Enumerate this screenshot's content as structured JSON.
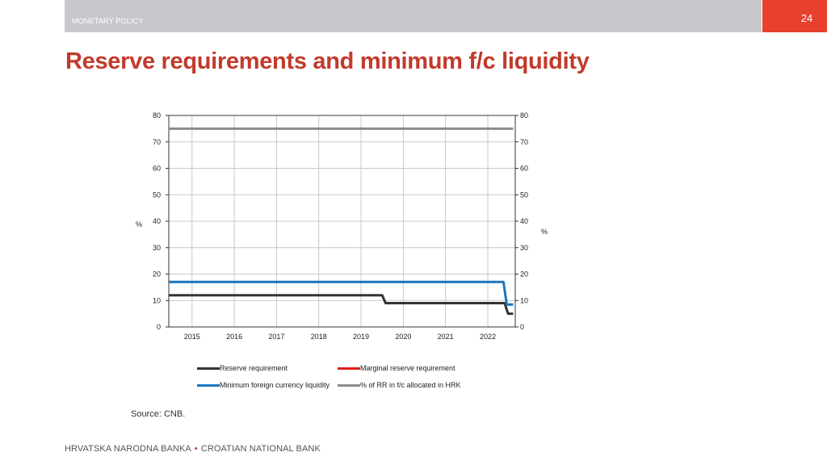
{
  "header": {
    "section": "MONETARY POLICY",
    "page_number": "24",
    "title": "Reserve requirements and minimum f/c liquidity",
    "bar_color": "#c8c8cc",
    "accent_color": "#e8402e",
    "title_color": "#c23a2b"
  },
  "chart_data": {
    "type": "line",
    "y_left_label": "%",
    "y_right_label": "%",
    "ylim": [
      0,
      80
    ],
    "y_ticks": [
      0,
      10,
      20,
      30,
      40,
      50,
      60,
      70,
      80
    ],
    "xlim": [
      2014.45,
      2022.65
    ],
    "x_ticks": [
      "2015",
      "2016",
      "2017",
      "2018",
      "2019",
      "2020",
      "2021",
      "2022"
    ],
    "grid": true,
    "legend_position": "bottom",
    "series": [
      {
        "name": "Reserve requirement",
        "color": "#333333",
        "x": [
          2014.45,
          2019.5,
          2019.58,
          2022.4,
          2022.48,
          2022.6
        ],
        "y": [
          12,
          12,
          9,
          9,
          5,
          5
        ]
      },
      {
        "name": "Marginal reserve requirement",
        "color": "#e31e1e",
        "x": [],
        "y": []
      },
      {
        "name": "Minimum foreign currency liquidity",
        "color": "#1c75bc",
        "x": [
          2014.45,
          2022.37,
          2022.45,
          2022.6
        ],
        "y": [
          17,
          17,
          8.5,
          8.5
        ]
      },
      {
        "name": "% of RR in f/c allocated in HRK",
        "color": "#8c8c8c",
        "x": [
          2014.45,
          2022.6
        ],
        "y": [
          75,
          75
        ]
      }
    ]
  },
  "legend": {
    "items": [
      {
        "label": "Reserve requirement",
        "color": "#333333"
      },
      {
        "label": "Marginal reserve requirement",
        "color": "#e31e1e"
      },
      {
        "label": "Minimum foreign currency liquidity",
        "color": "#1c75bc"
      },
      {
        "label": "% of RR in f/c allocated in HRK",
        "color": "#8c8c8c"
      }
    ]
  },
  "source": "Source: CNB.",
  "footer": {
    "left": "HRVATSKA NARODNA BANKA",
    "separator": "•",
    "right": "CROATIAN NATIONAL BANK"
  }
}
